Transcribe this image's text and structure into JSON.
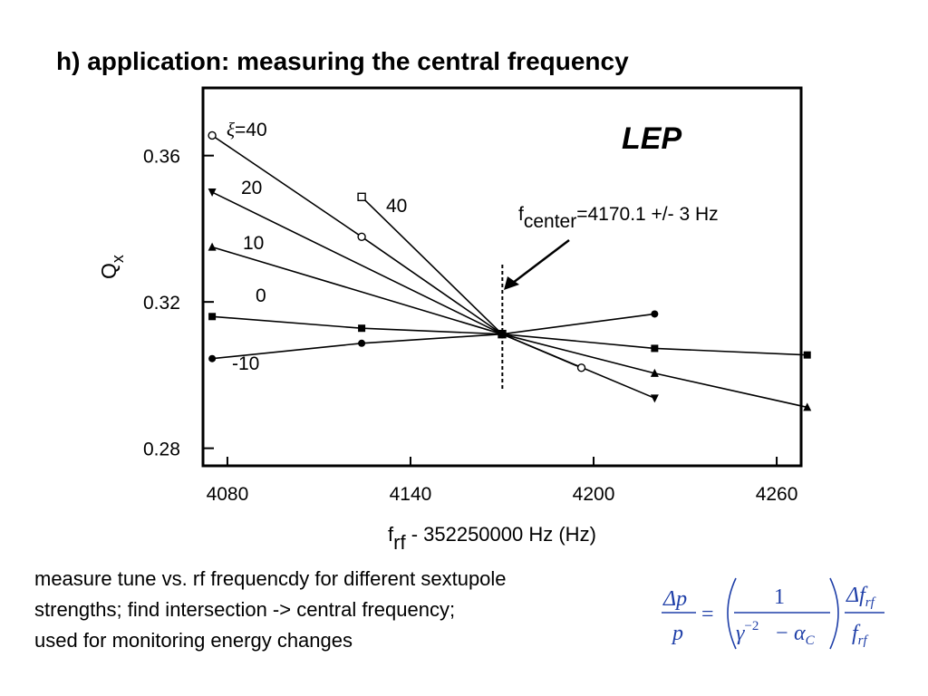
{
  "slide": {
    "title": "h) application: measuring the central frequency"
  },
  "caption": {
    "lines": [
      "measure tune vs. rf frequencdy for different sextupole",
      "strengths; find intersection -> central frequency;",
      "used for monitoring energy changes"
    ]
  },
  "formula": {
    "lhs_num": "Δp",
    "lhs_den": "p",
    "equals": "=",
    "inner_num": "1",
    "gamma": "γ",
    "gamma_exp": "−2",
    "minus": "−",
    "alpha": "α",
    "alpha_sub": "C",
    "rhs_num": "Δf",
    "rhs_den": "f",
    "rf_sub": "rf",
    "color": "#1f3fa8"
  },
  "chart_data": {
    "type": "scatter",
    "title": "LEP",
    "xlabel_main": "f",
    "xlabel_sub": "rf",
    "xlabel_rest": " - 352250000 Hz  (Hz)",
    "ylabel_main": "Q",
    "ylabel_sub": "x",
    "xlim": [
      4072,
      4268
    ],
    "ylim": [
      0.2752,
      0.3785
    ],
    "x_ticks": [
      4080,
      4140,
      4200,
      4260
    ],
    "x_tick_labels": [
      "4080",
      "4140",
      "4200",
      "4260"
    ],
    "y_ticks": [
      0.28,
      0.32,
      0.36
    ],
    "y_tick_labels": [
      "0.28",
      "0.32",
      "0.36"
    ],
    "grid": false,
    "center_frequency": 4170.1,
    "annotation": {
      "f": "f",
      "sub": "center",
      "text": "=4170.1  +/- 3 Hz"
    },
    "series": [
      {
        "label_symbol": "ξ",
        "label": "=40",
        "marker": "open-circle",
        "points": [
          [
            4075,
            0.3655
          ],
          [
            4124,
            0.3378
          ],
          [
            4170,
            0.3112
          ],
          [
            4196,
            0.302
          ]
        ]
      },
      {
        "label": "40",
        "marker": "open-square",
        "points": [
          [
            4124,
            0.3487
          ],
          [
            4170,
            0.3112
          ]
        ]
      },
      {
        "label": "20",
        "marker": "filled-triangle-down",
        "points": [
          [
            4075,
            0.35
          ],
          [
            4170,
            0.3112
          ],
          [
            4220,
            0.2937
          ]
        ]
      },
      {
        "label": "10",
        "marker": "filled-triangle-up",
        "points": [
          [
            4075,
            0.335
          ],
          [
            4170,
            0.3112
          ],
          [
            4220,
            0.3005
          ],
          [
            4270,
            0.2912
          ]
        ]
      },
      {
        "label": "0",
        "marker": "filled-square",
        "points": [
          [
            4075,
            0.316
          ],
          [
            4124,
            0.3128
          ],
          [
            4170,
            0.3112
          ],
          [
            4220,
            0.3073
          ],
          [
            4270,
            0.3055
          ]
        ]
      },
      {
        "label": "-10",
        "marker": "filled-circle",
        "points": [
          [
            4075,
            0.3045
          ],
          [
            4124,
            0.3087
          ],
          [
            4170,
            0.3112
          ],
          [
            4220,
            0.3167
          ]
        ]
      }
    ]
  }
}
